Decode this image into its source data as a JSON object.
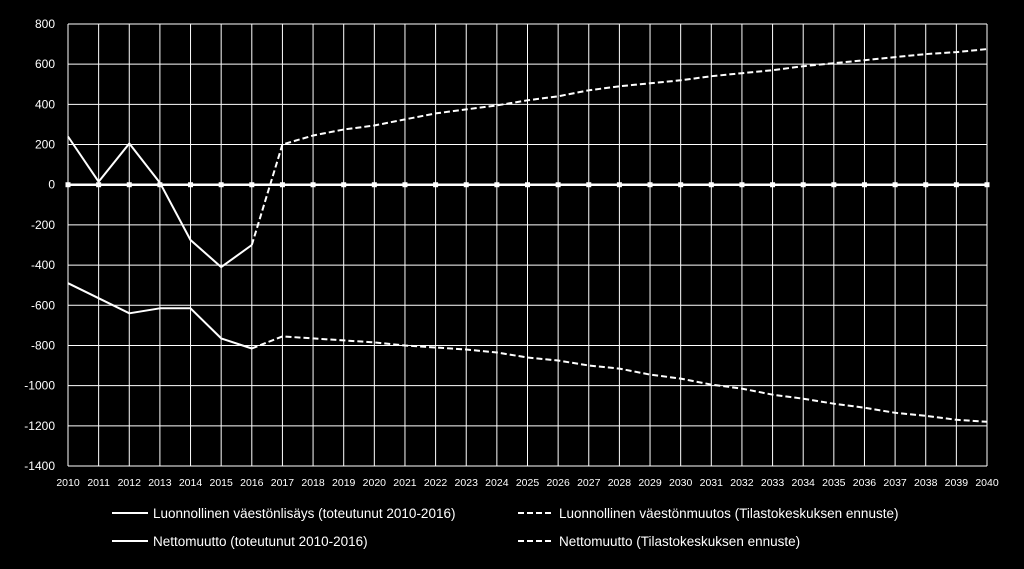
{
  "chart_data": {
    "type": "line",
    "x": [
      2010,
      2011,
      2012,
      2013,
      2014,
      2015,
      2016,
      2017,
      2018,
      2019,
      2020,
      2021,
      2022,
      2023,
      2024,
      2025,
      2026,
      2027,
      2028,
      2029,
      2030,
      2031,
      2032,
      2033,
      2034,
      2035,
      2036,
      2037,
      2038,
      2039,
      2040
    ],
    "x_tick_labels": [
      "2010",
      "2011",
      "2012",
      "2013",
      "2014",
      "2015",
      "2016",
      "2017",
      "2018",
      "2019",
      "2020",
      "2021",
      "2022",
      "2023",
      "2024",
      "2025",
      "2026",
      "2027",
      "2028",
      "2029",
      "2030",
      "2031",
      "2032",
      "2033",
      "2034",
      "2035",
      "2036",
      "2037",
      "2038",
      "2039",
      "2040"
    ],
    "ylim": [
      -1400,
      800
    ],
    "y_ticks": [
      800,
      600,
      400,
      200,
      0,
      -200,
      -400,
      -600,
      -800,
      -1000,
      -1200,
      -1400
    ],
    "y_tick_labels": [
      "800",
      "600",
      "400",
      "200",
      "0",
      "-200",
      "-400",
      "-600",
      "-800",
      "-1000",
      "-1200",
      "-1400"
    ],
    "grid": true,
    "legend_position": "bottom",
    "series": [
      {
        "name": "Luonnollinen väestönlisäys (toteutunut 2010-2016)",
        "style": "solid",
        "x": [
          2010,
          2011,
          2012,
          2013,
          2014,
          2015,
          2016
        ],
        "values": [
          240,
          15,
          205,
          10,
          -275,
          -410,
          -300
        ]
      },
      {
        "name": "Luonnollinen väestönmuutos (Tilastokeskuksen ennuste)",
        "style": "dashed",
        "x": [
          2016,
          2017,
          2018,
          2019,
          2020,
          2021,
          2022,
          2023,
          2024,
          2025,
          2026,
          2027,
          2028,
          2029,
          2030,
          2031,
          2032,
          2033,
          2034,
          2035,
          2036,
          2037,
          2038,
          2039,
          2040
        ],
        "values": [
          -300,
          200,
          245,
          275,
          295,
          325,
          355,
          375,
          395,
          420,
          440,
          470,
          490,
          505,
          520,
          540,
          555,
          570,
          590,
          605,
          620,
          635,
          650,
          660,
          675
        ]
      },
      {
        "name": "Nettomuutto (toteutunut 2010-2016)",
        "style": "solid",
        "x": [
          2010,
          2011,
          2012,
          2013,
          2014,
          2015,
          2016
        ],
        "values": [
          -490,
          -565,
          -640,
          -615,
          -615,
          -765,
          -815
        ]
      },
      {
        "name": "Nettomuutto (Tilastokeskuksen ennuste)",
        "style": "dashed",
        "x": [
          2016,
          2017,
          2018,
          2019,
          2020,
          2021,
          2022,
          2023,
          2024,
          2025,
          2026,
          2027,
          2028,
          2029,
          2030,
          2031,
          2032,
          2033,
          2034,
          2035,
          2036,
          2037,
          2038,
          2039,
          2040
        ],
        "values": [
          -815,
          -755,
          -765,
          -775,
          -785,
          -800,
          -810,
          -820,
          -835,
          -860,
          -875,
          -900,
          -915,
          -945,
          -965,
          -995,
          -1015,
          -1045,
          -1065,
          -1090,
          -1110,
          -1135,
          -1150,
          -1170,
          -1180
        ]
      }
    ],
    "zero_line_style": "solid-with-markers",
    "line_color": "#ffffff",
    "grid_color": "#ffffff",
    "background_color": "#000000"
  }
}
